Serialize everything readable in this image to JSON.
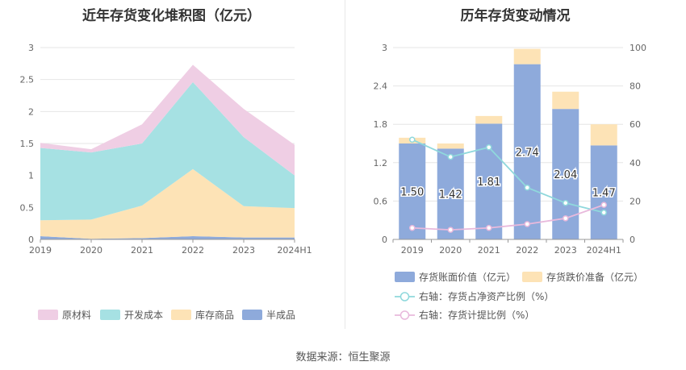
{
  "source_text": "数据来源：恒生聚源",
  "chart_data": [
    {
      "type": "area",
      "stacked": true,
      "title": "近年存货变化堆积图（亿元）",
      "categories": [
        "2019",
        "2020",
        "2021",
        "2022",
        "2023",
        "2024H1"
      ],
      "ylim": [
        0,
        3
      ],
      "yticks": [
        "0",
        "0.5",
        "1",
        "1.5",
        "2",
        "2.5",
        "3"
      ],
      "legend_position": "bottom",
      "grid": true,
      "series": [
        {
          "name": "半成品",
          "color": "#8eaadb",
          "values": [
            0.05,
            0.01,
            0.02,
            0.05,
            0.03,
            0.03
          ]
        },
        {
          "name": "库存商品",
          "color": "#fde3b6",
          "values": [
            0.25,
            0.3,
            0.51,
            1.05,
            0.49,
            0.46
          ]
        },
        {
          "name": "开发成本",
          "color": "#a6e1e3",
          "values": [
            1.13,
            1.05,
            0.97,
            1.36,
            1.08,
            0.51
          ]
        },
        {
          "name": "原材料",
          "color": "#efcee4",
          "values": [
            0.08,
            0.05,
            0.3,
            0.27,
            0.44,
            0.48
          ]
        }
      ],
      "legend_order": [
        "原材料",
        "开发成本",
        "库存商品",
        "半成品"
      ]
    },
    {
      "type": "bar",
      "stacked": true,
      "title": "历年存货变动情况",
      "categories": [
        "2019",
        "2020",
        "2021",
        "2022",
        "2023",
        "2024H1"
      ],
      "ylim": [
        0,
        3
      ],
      "yticks": [
        "0",
        "0.6",
        "1.2",
        "1.8",
        "2.4",
        "3"
      ],
      "y2lim": [
        0,
        100
      ],
      "y2ticks": [
        "0",
        "20",
        "40",
        "60",
        "80",
        "100"
      ],
      "legend_position": "bottom",
      "grid": true,
      "series": [
        {
          "name": "存货账面价值（亿元）",
          "color": "#8eaadb",
          "values": [
            1.5,
            1.42,
            1.81,
            2.74,
            2.04,
            1.47
          ],
          "labels": [
            "1.50",
            "1.42",
            "1.81",
            "2.74",
            "2.04",
            "1.47"
          ]
        },
        {
          "name": "存货跌价准备（亿元）",
          "color": "#fde3b6",
          "values": [
            0.09,
            0.08,
            0.12,
            0.24,
            0.27,
            0.33
          ]
        }
      ],
      "line_series": [
        {
          "name": "右轴：存货占净资产比例（%）",
          "color": "#8fd8dc",
          "values": [
            52,
            43,
            48,
            27,
            19,
            14
          ]
        },
        {
          "name": "右轴：存货计提比例（%）",
          "color": "#e8b9dc",
          "values": [
            6,
            5,
            6,
            8,
            11,
            18
          ]
        }
      ]
    }
  ]
}
